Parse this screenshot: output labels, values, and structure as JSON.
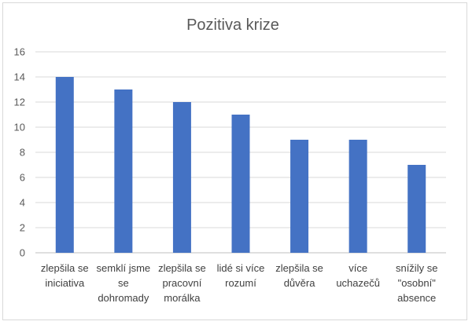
{
  "chart_data": {
    "type": "bar",
    "title": "Pozitiva krize",
    "xlabel": "",
    "ylabel": "",
    "categories": [
      [
        "zlepšila se",
        "iniciativa"
      ],
      [
        "semklí jsme",
        "se",
        "dohromady"
      ],
      [
        "zlepšila se",
        "pracovní",
        "morálka"
      ],
      [
        "lidé si více",
        "rozumí"
      ],
      [
        "zlepšila se",
        "důvěra"
      ],
      [
        "více",
        "uchazečů"
      ],
      [
        "snížily se",
        "\"osobní\"",
        "absence"
      ]
    ],
    "values": [
      14,
      13,
      12,
      11,
      9,
      9,
      7
    ],
    "ylim": [
      0,
      16
    ],
    "yticks": [
      0,
      2,
      4,
      6,
      8,
      10,
      12,
      14,
      16
    ],
    "grid": true,
    "legend": "none",
    "colors": {
      "bar": "#4472c4"
    }
  }
}
